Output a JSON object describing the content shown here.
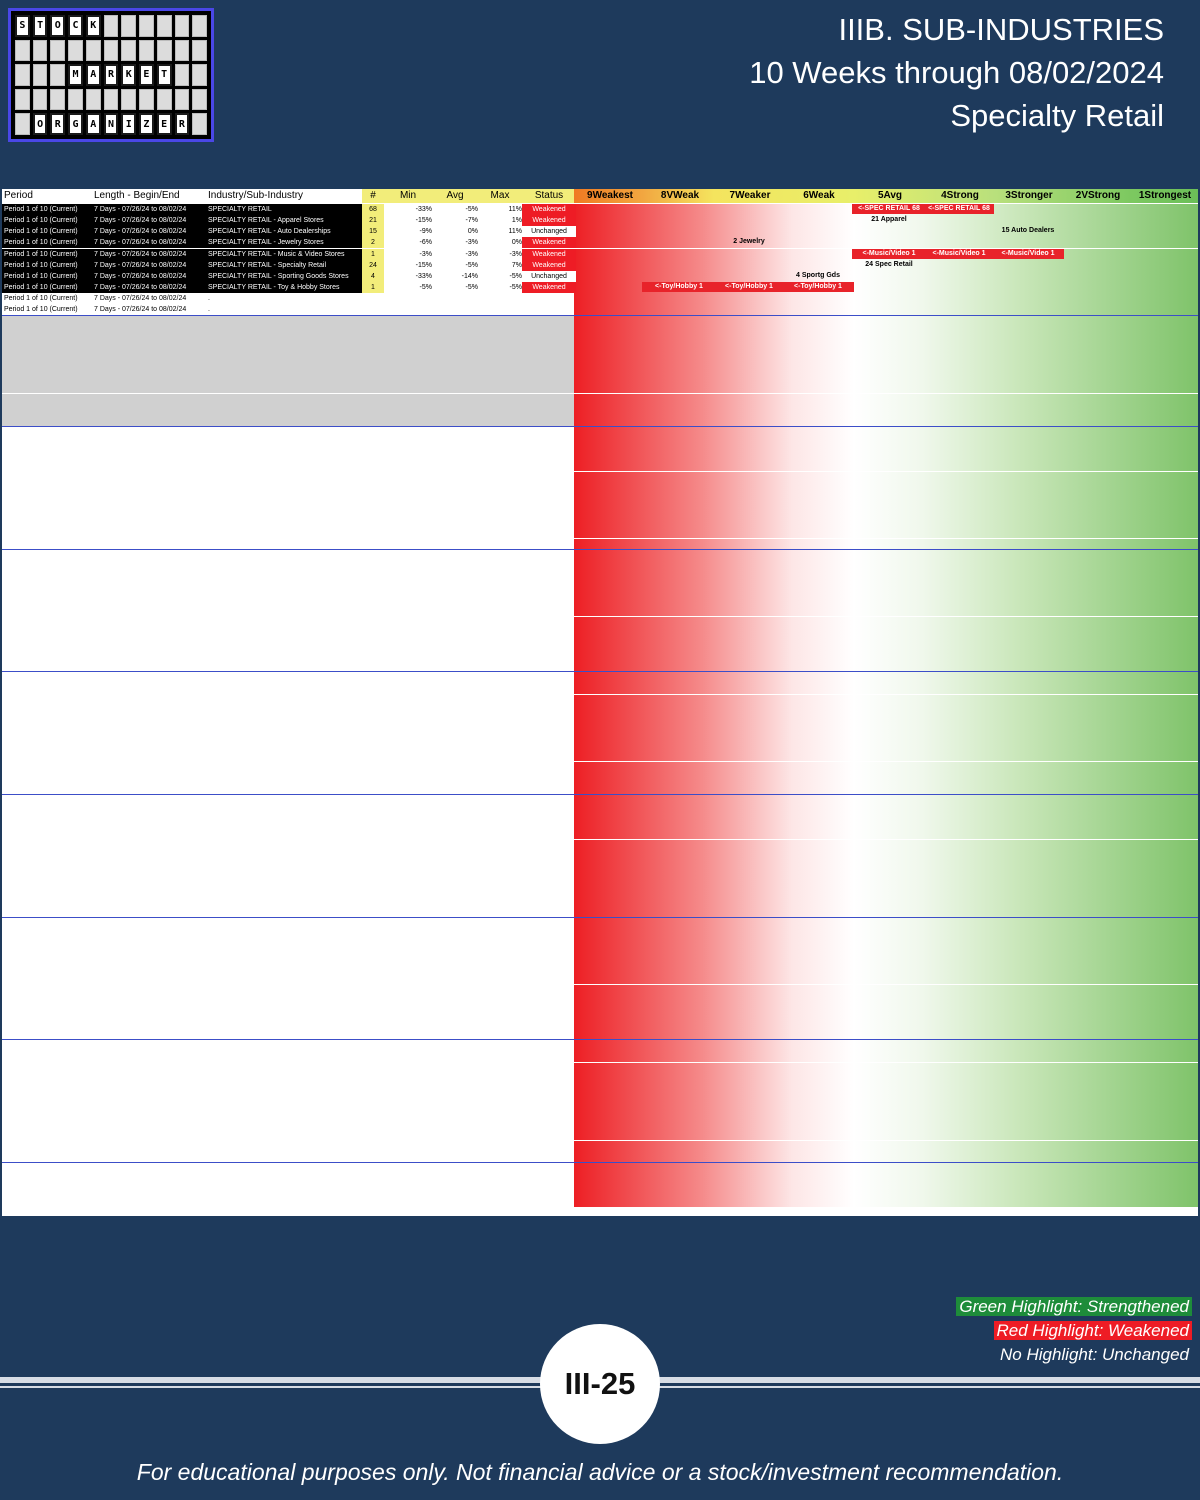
{
  "header": {
    "line1": "IIIB. SUB-INDUSTRIES",
    "line2": "10 Weeks through 08/02/2024",
    "line3": "Specialty Retail"
  },
  "logo": {
    "word1": "STOCK",
    "word2": "MARKET",
    "word3": "ORGANIZER"
  },
  "columns": [
    "Period",
    "Length - Begin/End",
    "Industry/Sub-Industry",
    "#",
    "Min",
    "Avg",
    "Max",
    "Status",
    "9Weakest",
    "8VWeak",
    "7Weaker",
    "6Weak",
    "5Avg",
    "4Strong",
    "3Stronger",
    "2VStrong",
    "1Strongest"
  ],
  "statusColors": {
    "Weakened": "#ee1c25",
    "Strengthened": "#1e8c3a",
    "Unchanged": "#ffffff"
  },
  "rows": [
    {
      "p": "Period 1 of 10 (Current)",
      "l": "7 Days - 07/26/24 to 08/02/24",
      "i": "SPECIALTY RETAIL",
      "n": "68",
      "mn": "-33%",
      "av": "-5%",
      "mx": "11%",
      "s": "Weakened"
    },
    {
      "p": "Period 1 of 10 (Current)",
      "l": "7 Days - 07/26/24 to 08/02/24",
      "i": "SPECIALTY RETAIL - Apparel Stores",
      "n": "21",
      "mn": "-15%",
      "av": "-7%",
      "mx": "1%",
      "s": "Weakened"
    },
    {
      "p": "Period 1 of 10 (Current)",
      "l": "7 Days - 07/26/24 to 08/02/24",
      "i": "SPECIALTY RETAIL - Auto Dealerships",
      "n": "15",
      "mn": "-9%",
      "av": "0%",
      "mx": "11%",
      "s": "Unchanged"
    },
    {
      "p": "Period 1 of 10 (Current)",
      "l": "7 Days - 07/26/24 to 08/02/24",
      "i": "SPECIALTY RETAIL - Jewelry Stores",
      "n": "2",
      "mn": "-6%",
      "av": "-3%",
      "mx": "0%",
      "s": "Weakened"
    },
    {
      "p": "Period 1 of 10 (Current)",
      "l": "7 Days - 07/26/24 to 08/02/24",
      "i": "SPECIALTY RETAIL - Music & Video Stores",
      "n": "1",
      "mn": "-3%",
      "av": "-3%",
      "mx": "-3%",
      "s": "Weakened"
    },
    {
      "p": "Period 1 of 10 (Current)",
      "l": "7 Days - 07/26/24 to 08/02/24",
      "i": "SPECIALTY RETAIL - Specialty Retail",
      "n": "24",
      "mn": "-15%",
      "av": "-5%",
      "mx": "7%",
      "s": "Weakened"
    },
    {
      "p": "Period 1 of 10 (Current)",
      "l": "7 Days - 07/26/24 to 08/02/24",
      "i": "SPECIALTY RETAIL - Sporting Goods Stores",
      "n": "4",
      "mn": "-33%",
      "av": "-14%",
      "mx": "-5%",
      "s": "Unchanged"
    },
    {
      "p": "Period 1 of 10 (Current)",
      "l": "7 Days - 07/26/24 to 08/02/24",
      "i": "SPECIALTY RETAIL - Toy & Hobby Stores",
      "n": "1",
      "mn": "-5%",
      "av": "-5%",
      "mx": "-5%",
      "s": "Weakened"
    },
    {
      "p": "Period 1 of 10 (Current)",
      "l": "7 Days - 07/26/24 to 08/02/24",
      "i": ".",
      "n": "",
      "mn": "",
      "av": "",
      "mx": "",
      "s": ""
    },
    {
      "p": "Period 1 of 10 (Current)",
      "l": "7 Days - 07/26/24 to 08/02/24",
      "i": ".",
      "n": "",
      "mn": "",
      "av": "",
      "mx": "",
      "s": ""
    }
  ],
  "pills": [
    {
      "row": 0,
      "col": 12,
      "t": "<-SPEC RETAIL 68",
      "c": "r"
    },
    {
      "row": 0,
      "col": 13,
      "t": "<-SPEC RETAIL 68",
      "c": "r"
    },
    {
      "row": 1,
      "col": 12,
      "t": "21 Apparel",
      "c": "n"
    },
    {
      "row": 2,
      "col": 14,
      "t": "15 Auto Dealers",
      "c": "n"
    },
    {
      "row": 3,
      "col": 10,
      "t": "2 Jewelry",
      "c": "n"
    },
    {
      "row": 4,
      "col": 12,
      "t": "<-Music/Video 1",
      "c": "r"
    },
    {
      "row": 4,
      "col": 13,
      "t": "<-Music/Video 1",
      "c": "r"
    },
    {
      "row": 4,
      "col": 14,
      "t": "<-Music/Video 1",
      "c": "r"
    },
    {
      "row": 5,
      "col": 12,
      "t": "24 Spec Retail",
      "c": "n"
    },
    {
      "row": 6,
      "col": 11,
      "t": "4 Sportg Gds",
      "c": "n"
    },
    {
      "row": 7,
      "col": 9,
      "t": "<-Toy/Hobby 1",
      "c": "r"
    },
    {
      "row": 7,
      "col": 10,
      "t": "<-Toy/Hobby 1",
      "c": "r"
    },
    {
      "row": 7,
      "col": 11,
      "t": "<-Toy/Hobby 1",
      "c": "r"
    }
  ],
  "legend": {
    "green": "Green Highlight: Strengthened",
    "red": "Red Highlight: Weakened",
    "none": "No Highlight: Unchanged"
  },
  "page_number": "III-25",
  "footer": "For educational purposes only. Not financial advice or a stock/investment recommendation."
}
